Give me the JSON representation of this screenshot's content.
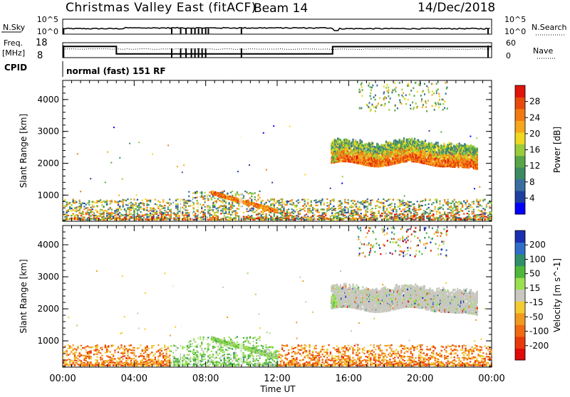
{
  "header": {
    "title": "Christmas Valley East (fitACF)",
    "beam": "Beam 14",
    "date": "14/Dec/2018"
  },
  "strips": {
    "nsky": {
      "label": "N.Sky",
      "ticks_left": [
        "10^5",
        "10^0"
      ],
      "right_label": "N.Search",
      "ticks_right": [
        "10^5",
        "10^0"
      ]
    },
    "freq": {
      "label_line1": "Freq.",
      "label_line2": "[MHz]",
      "ticks_left": [
        "18",
        "8"
      ],
      "right_label": "Nave",
      "ticks_right": [
        "60",
        "0"
      ]
    },
    "cpid": {
      "label": "CPID",
      "text": "normal (fast) 151 RF"
    }
  },
  "time_axis": {
    "ticks": [
      "00:00",
      "04:00",
      "08:00",
      "12:00",
      "16:00",
      "20:00",
      "00:00"
    ],
    "title": "Time UT"
  },
  "chart_data": [
    {
      "type": "heatmap",
      "name": "power",
      "ylabel": "Slant Range [km]",
      "yticks": [
        "1000",
        "2000",
        "3000",
        "4000"
      ],
      "ylim": [
        180,
        4600
      ],
      "xlim": [
        0,
        24
      ],
      "colorbar": {
        "label": "Power [dB]",
        "ticks": [
          "4",
          "8",
          "12",
          "16",
          "20",
          "24",
          "28"
        ],
        "range": [
          0,
          32
        ],
        "colors": [
          "#0000ff",
          "#1f3f9f",
          "#3a6ea0",
          "#3b8a62",
          "#58a648",
          "#9bcc3c",
          "#f0d820",
          "#f6a71c",
          "#f27a10",
          "#e84a0b",
          "#e0140a"
        ]
      }
    },
    {
      "type": "heatmap",
      "name": "velocity",
      "ylabel": "Slant Range [km]",
      "yticks": [
        "1000",
        "2000",
        "3000",
        "4000"
      ],
      "ylim": [
        180,
        4600
      ],
      "xlim": [
        0,
        24
      ],
      "colorbar": {
        "label": "Velocity [m s^-1]",
        "ticks": [
          "200",
          "100",
          "50",
          "15",
          "-15",
          "-50",
          "-100",
          "-200"
        ],
        "colors": [
          "#1c2fb0",
          "#2f6fc8",
          "#2f8f6a",
          "#4fb83a",
          "#9be050",
          "#c8c8c0",
          "#f2cc30",
          "#f09a20",
          "#ef6a10",
          "#e83a0a",
          "#e00a0a"
        ]
      }
    }
  ]
}
